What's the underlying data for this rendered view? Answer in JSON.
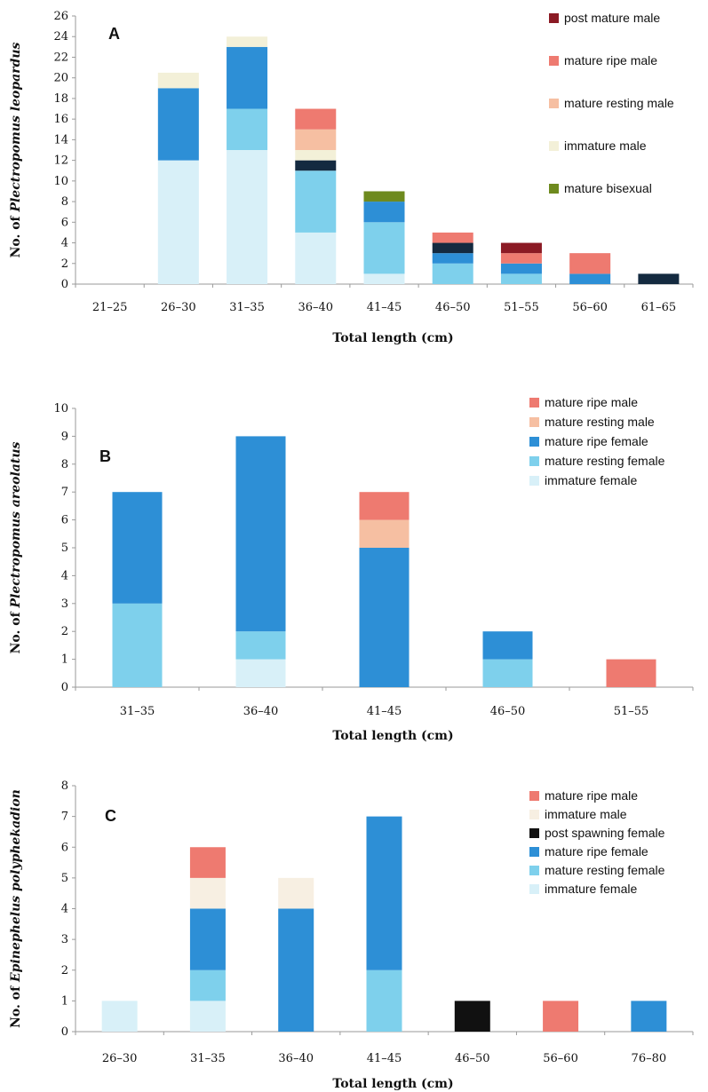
{
  "chart_data": [
    {
      "type": "bar",
      "stacked": true,
      "panel_label": "A",
      "ylabel_prefix": "No. of ",
      "ylabel_species": "Plectropomus leopardus",
      "xlabel": "Total length (cm)",
      "ylim": [
        0,
        26
      ],
      "ytick_step": 2,
      "grid": false,
      "legend_position": "top-right",
      "categories": [
        "21–25",
        "26–30",
        "31–35",
        "36–40",
        "41–45",
        "46–50",
        "51–55",
        "56–60",
        "61–65"
      ],
      "series": [
        {
          "name": "immature female",
          "color": "#d8f0f8",
          "values": [
            0,
            12,
            13,
            5,
            1,
            0,
            0,
            0,
            0
          ]
        },
        {
          "name": "mature resting female",
          "color": "#7ed0ec",
          "values": [
            0,
            0,
            4,
            6,
            5,
            2,
            1,
            0,
            0
          ]
        },
        {
          "name": "mature ripe female",
          "color": "#2d8fd6",
          "values": [
            0,
            7,
            6,
            0,
            2,
            1,
            1,
            1,
            0
          ]
        },
        {
          "name": "post spawning female",
          "color": "#142a40",
          "values": [
            0,
            0,
            0,
            1,
            0,
            1,
            0,
            0,
            1
          ]
        },
        {
          "name": "mature bisexual",
          "color": "#6e8a1e",
          "values": [
            0,
            0,
            0,
            0,
            1,
            0,
            0,
            0,
            0
          ]
        },
        {
          "name": "immature male",
          "color": "#f3f0d8",
          "values": [
            0,
            1.5,
            1,
            1,
            0,
            0,
            0,
            0,
            0
          ]
        },
        {
          "name": "mature resting male",
          "color": "#f6bfa2",
          "values": [
            0,
            0,
            0,
            2,
            0,
            0,
            0,
            0,
            0
          ]
        },
        {
          "name": "mature ripe male",
          "color": "#ee7a70",
          "values": [
            0,
            0,
            0,
            2,
            0,
            1,
            1,
            2,
            0
          ]
        },
        {
          "name": "post mature male",
          "color": "#8b1a24",
          "values": [
            0,
            0,
            0,
            0,
            0,
            0,
            1,
            0,
            0
          ]
        }
      ],
      "legend": [
        {
          "label": "post mature male",
          "color": "#8b1a24"
        },
        {
          "label": "mature ripe male",
          "color": "#ee7a70"
        },
        {
          "label": "mature resting male",
          "color": "#f6bfa2"
        },
        {
          "label": "immature male",
          "color": "#f3f0d8"
        },
        {
          "label": "mature bisexual",
          "color": "#6e8a1e"
        }
      ]
    },
    {
      "type": "bar",
      "stacked": true,
      "panel_label": "B",
      "ylabel_prefix": "No. of ",
      "ylabel_species": "Plectropomus areolatus",
      "xlabel": "Total length (cm)",
      "ylim": [
        0,
        10
      ],
      "ytick_step": 1,
      "grid": false,
      "legend_position": "top-right",
      "categories": [
        "31–35",
        "36–40",
        "41–45",
        "46–50",
        "51–55"
      ],
      "series": [
        {
          "name": "immature female",
          "color": "#d8f0f8",
          "values": [
            0,
            1,
            0,
            0,
            0
          ]
        },
        {
          "name": "mature resting female",
          "color": "#7ed0ec",
          "values": [
            3,
            1,
            0,
            1,
            0
          ]
        },
        {
          "name": "mature ripe female",
          "color": "#2d8fd6",
          "values": [
            4,
            7,
            5,
            1,
            0
          ]
        },
        {
          "name": "mature resting male",
          "color": "#f6bfa2",
          "values": [
            0,
            0,
            1,
            0,
            0
          ]
        },
        {
          "name": "mature ripe male",
          "color": "#ee7a70",
          "values": [
            0,
            0,
            1,
            0,
            1
          ]
        }
      ],
      "legend": [
        {
          "label": "mature ripe male",
          "color": "#ee7a70"
        },
        {
          "label": "mature resting male",
          "color": "#f6bfa2"
        },
        {
          "label": "mature ripe female",
          "color": "#2d8fd6"
        },
        {
          "label": "mature resting female",
          "color": "#7ed0ec"
        },
        {
          "label": "immature female",
          "color": "#d8f0f8"
        }
      ]
    },
    {
      "type": "bar",
      "stacked": true,
      "panel_label": "C",
      "ylabel_prefix": "No. of ",
      "ylabel_species": "Epinephelus polyphekadion",
      "xlabel": "Total length (cm)",
      "ylim": [
        0,
        8
      ],
      "ytick_step": 1,
      "grid": false,
      "legend_position": "top-right",
      "categories": [
        "26–30",
        "31–35",
        "36–40",
        "41–45",
        "46–50",
        "56–60",
        "76–80"
      ],
      "series": [
        {
          "name": "immature female",
          "color": "#d8f0f8",
          "values": [
            1,
            1,
            0,
            0,
            0,
            0,
            0
          ]
        },
        {
          "name": "mature resting female",
          "color": "#7ed0ec",
          "values": [
            0,
            1,
            0,
            2,
            0,
            0,
            0
          ]
        },
        {
          "name": "mature ripe female",
          "color": "#2d8fd6",
          "values": [
            0,
            2,
            4,
            5,
            0,
            0,
            1
          ]
        },
        {
          "name": "post spawning female",
          "color": "#111111",
          "values": [
            0,
            0,
            0,
            0,
            1,
            0,
            0
          ]
        },
        {
          "name": "immature male",
          "color": "#f7efe2",
          "values": [
            0,
            1,
            1,
            0,
            0,
            0,
            0
          ]
        },
        {
          "name": "mature ripe male",
          "color": "#ee7a70",
          "values": [
            0,
            1,
            0,
            0,
            0,
            1,
            0
          ]
        }
      ],
      "legend": [
        {
          "label": "mature ripe male",
          "color": "#ee7a70"
        },
        {
          "label": "immature male",
          "color": "#f7efe2"
        },
        {
          "label": "post spawning female",
          "color": "#111111"
        },
        {
          "label": "mature ripe female",
          "color": "#2d8fd6"
        },
        {
          "label": "mature resting female",
          "color": "#7ed0ec"
        },
        {
          "label": "immature female",
          "color": "#d8f0f8"
        }
      ]
    }
  ]
}
